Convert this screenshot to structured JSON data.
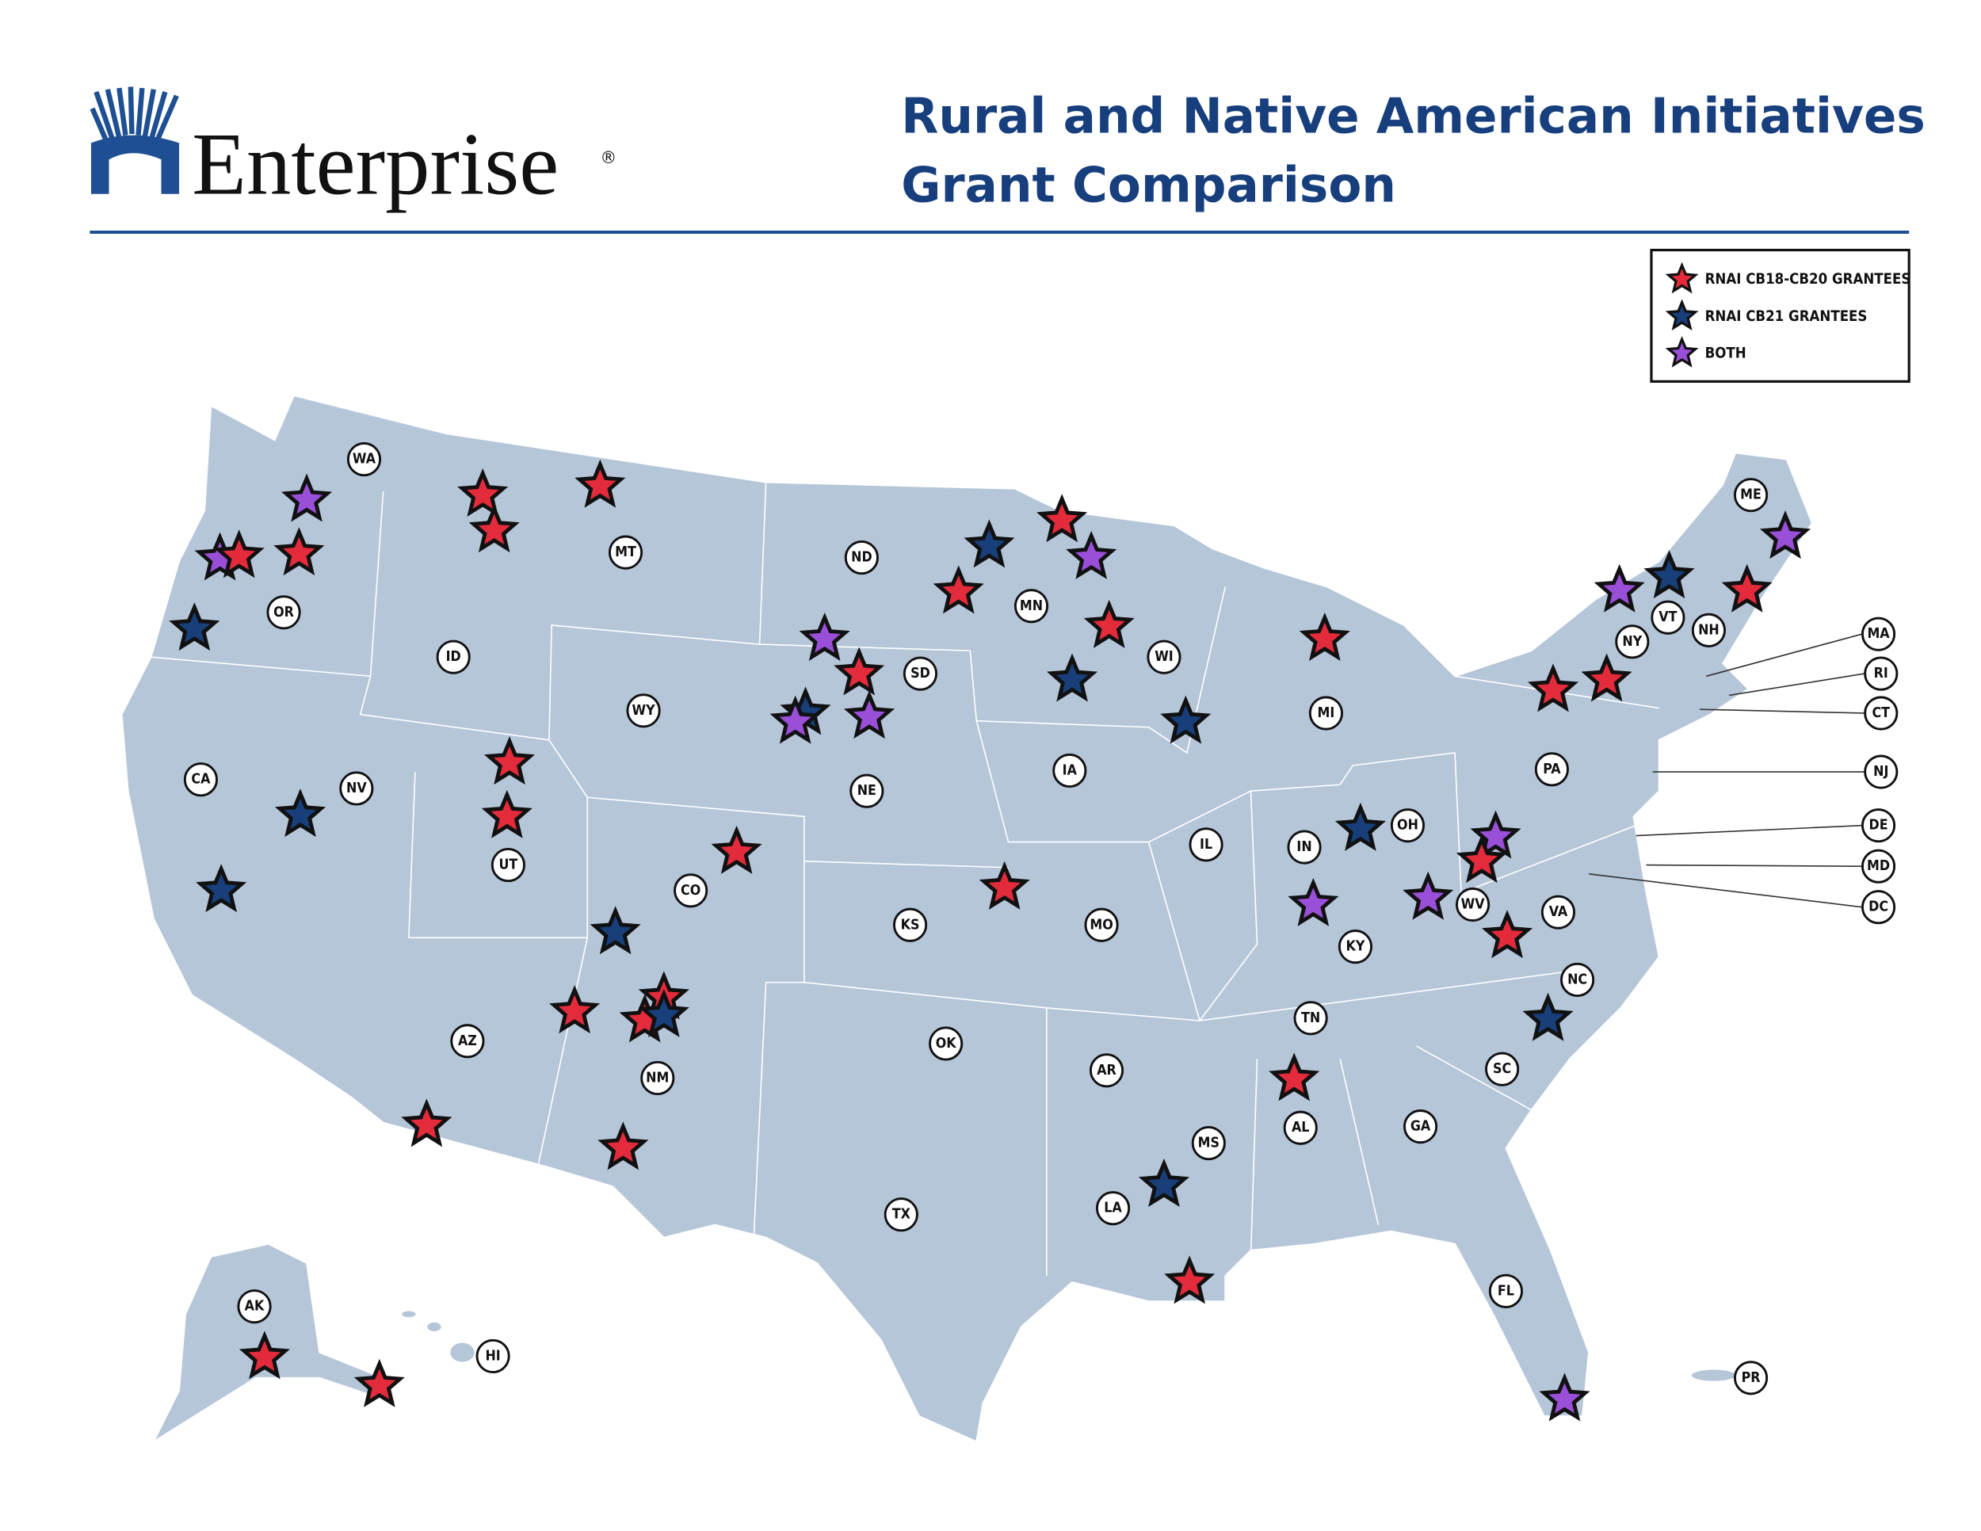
{
  "header": {
    "logo": "Enterprise",
    "registered": "®",
    "title": [
      "Rural and Native American Initiatives",
      "Grant Comparison"
    ]
  },
  "legend": [
    {
      "label": "RNAI CB18-CB20 GRANTEES",
      "color": "#e32b3c"
    },
    {
      "label": "RNAI CB21 GRANTEES",
      "color": "#183f7a"
    },
    {
      "label": "BOTH",
      "color": "#9a4fd8"
    }
  ],
  "states": [
    "WA",
    "OR",
    "CA",
    "NV",
    "ID",
    "MT",
    "WY",
    "UT",
    "AZ",
    "CO",
    "NM",
    "ND",
    "SD",
    "NE",
    "KS",
    "OK",
    "TX",
    "MN",
    "IA",
    "MO",
    "AR",
    "LA",
    "WI",
    "IL",
    "MI",
    "IN",
    "OH",
    "KY",
    "TN",
    "MS",
    "AL",
    "GA",
    "FL",
    "SC",
    "NC",
    "VA",
    "WV",
    "PA",
    "NY",
    "VT",
    "NH",
    "ME",
    "MA",
    "RI",
    "CT",
    "NJ",
    "DE",
    "MD",
    "DC",
    "AK",
    "HI",
    "PR"
  ]
}
